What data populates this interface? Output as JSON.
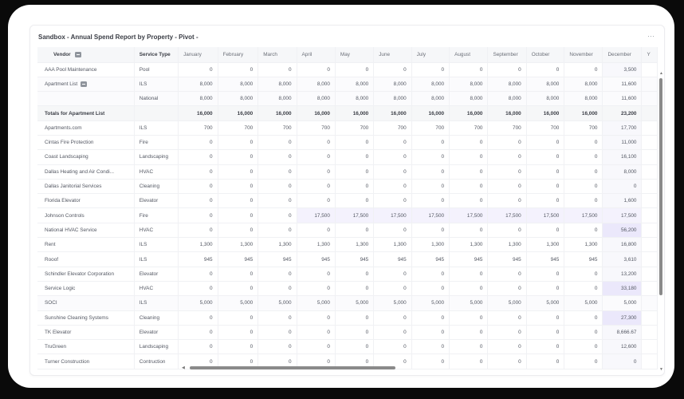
{
  "card": {
    "title": "Sandbox - Annual Spend Report by Property - Pivot -",
    "more_label": "···"
  },
  "table": {
    "columns": [
      "Vendor",
      "Service Type",
      "January",
      "February",
      "March",
      "April",
      "May",
      "June",
      "July",
      "August",
      "September",
      "October",
      "November",
      "December",
      "Y"
    ],
    "rows": [
      {
        "vendor": "AAA Pool Maintenance",
        "type": "Pool",
        "values": [
          "0",
          "0",
          "0",
          "0",
          "0",
          "0",
          "0",
          "0",
          "0",
          "0",
          "0",
          "3,500"
        ]
      },
      {
        "vendor": "Apartment List",
        "type": "ILS",
        "values": [
          "8,000",
          "8,000",
          "8,000",
          "8,000",
          "8,000",
          "8,000",
          "8,000",
          "8,000",
          "8,000",
          "8,000",
          "8,000",
          "11,600"
        ],
        "collapsible": true
      },
      {
        "vendor": "",
        "type": "National",
        "values": [
          "8,000",
          "8,000",
          "8,000",
          "8,000",
          "8,000",
          "8,000",
          "8,000",
          "8,000",
          "8,000",
          "8,000",
          "8,000",
          "11,600"
        ]
      },
      {
        "vendor": "Totals for Apartment List",
        "type": "",
        "values": [
          "16,000",
          "16,000",
          "16,000",
          "16,000",
          "16,000",
          "16,000",
          "16,000",
          "16,000",
          "16,000",
          "16,000",
          "16,000",
          "23,200"
        ],
        "total": true
      },
      {
        "vendor": "Apartments.com",
        "type": "ILS",
        "values": [
          "700",
          "700",
          "700",
          "700",
          "700",
          "700",
          "700",
          "700",
          "700",
          "700",
          "700",
          "17,700"
        ]
      },
      {
        "vendor": "Cintas Fire Protection",
        "type": "Fire",
        "values": [
          "0",
          "0",
          "0",
          "0",
          "0",
          "0",
          "0",
          "0",
          "0",
          "0",
          "0",
          "11,000"
        ]
      },
      {
        "vendor": "Coast Landscaping",
        "type": "Landscaping",
        "values": [
          "0",
          "0",
          "0",
          "0",
          "0",
          "0",
          "0",
          "0",
          "0",
          "0",
          "0",
          "16,100"
        ]
      },
      {
        "vendor": "Dallas Heating and Air Condi...",
        "type": "HVAC",
        "values": [
          "0",
          "0",
          "0",
          "0",
          "0",
          "0",
          "0",
          "0",
          "0",
          "0",
          "0",
          "8,000"
        ]
      },
      {
        "vendor": "Dallas Janitorial Services",
        "type": "Cleaning",
        "values": [
          "0",
          "0",
          "0",
          "0",
          "0",
          "0",
          "0",
          "0",
          "0",
          "0",
          "0",
          "0"
        ]
      },
      {
        "vendor": "Florida Elevator",
        "type": "Elevator",
        "values": [
          "0",
          "0",
          "0",
          "0",
          "0",
          "0",
          "0",
          "0",
          "0",
          "0",
          "0",
          "1,600"
        ]
      },
      {
        "vendor": "Johnson Controls",
        "type": "Fire",
        "values": [
          "0",
          "0",
          "0",
          "17,500",
          "17,500",
          "17,500",
          "17,500",
          "17,500",
          "17,500",
          "17,500",
          "17,500",
          "17,500"
        ]
      },
      {
        "vendor": "National HVAC Service",
        "type": "HVAC",
        "values": [
          "0",
          "0",
          "0",
          "0",
          "0",
          "0",
          "0",
          "0",
          "0",
          "0",
          "0",
          "56,200"
        ]
      },
      {
        "vendor": "Rent",
        "type": "ILS",
        "values": [
          "1,300",
          "1,300",
          "1,300",
          "1,300",
          "1,300",
          "1,300",
          "1,300",
          "1,300",
          "1,300",
          "1,300",
          "1,300",
          "16,800"
        ]
      },
      {
        "vendor": "Rooof",
        "type": "ILS",
        "values": [
          "945",
          "945",
          "945",
          "945",
          "945",
          "945",
          "945",
          "945",
          "945",
          "945",
          "945",
          "3,610"
        ]
      },
      {
        "vendor": "Schindler Elevator Corporation",
        "type": "Elevator",
        "values": [
          "0",
          "0",
          "0",
          "0",
          "0",
          "0",
          "0",
          "0",
          "0",
          "0",
          "0",
          "13,200"
        ]
      },
      {
        "vendor": "Service Logic",
        "type": "HVAC",
        "values": [
          "0",
          "0",
          "0",
          "0",
          "0",
          "0",
          "0",
          "0",
          "0",
          "0",
          "0",
          "33,180"
        ]
      },
      {
        "vendor": "SOCI",
        "type": "ILS",
        "values": [
          "5,000",
          "5,000",
          "5,000",
          "5,000",
          "5,000",
          "5,000",
          "5,000",
          "5,000",
          "5,000",
          "5,000",
          "5,000",
          "5,000"
        ]
      },
      {
        "vendor": "Sunshine Cleaning Systems",
        "type": "Cleaning",
        "values": [
          "0",
          "0",
          "0",
          "0",
          "0",
          "0",
          "0",
          "0",
          "0",
          "0",
          "0",
          "27,300"
        ]
      },
      {
        "vendor": "TK Elevator",
        "type": "Elevator",
        "values": [
          "0",
          "0",
          "0",
          "0",
          "0",
          "0",
          "0",
          "0",
          "0",
          "0",
          "0",
          "8,666.67"
        ]
      },
      {
        "vendor": "TruGreen",
        "type": "Landscaping",
        "values": [
          "0",
          "0",
          "0",
          "0",
          "0",
          "0",
          "0",
          "0",
          "0",
          "0",
          "0",
          "12,600"
        ]
      },
      {
        "vendor": "Turner Construction",
        "type": "Contruction",
        "values": [
          "0",
          "0",
          "0",
          "0",
          "0",
          "0",
          "0",
          "0",
          "0",
          "0",
          "0",
          "0"
        ]
      }
    ]
  },
  "colors": {
    "highlight_light": "#f4f2fd",
    "highlight_strong": "#ebe8fb",
    "header_bg": "#f6f7f9",
    "scrollbar": "#8a8a8a"
  }
}
